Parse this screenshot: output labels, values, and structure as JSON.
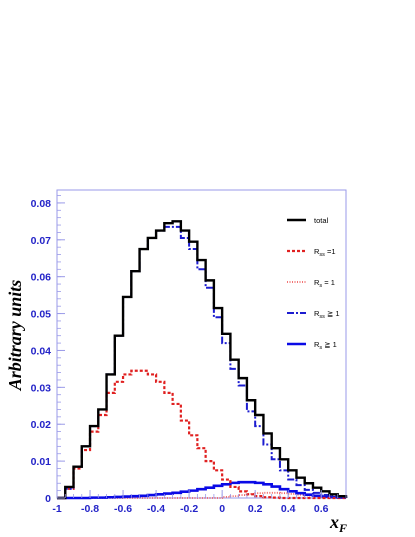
{
  "chart_data": {
    "type": "line",
    "step": true,
    "xlabel": "x_F",
    "ylabel": "Arbitrary units",
    "xlim": [
      -1,
      0.75
    ],
    "ylim": [
      0,
      0.0835
    ],
    "grid": false,
    "legend_position": "top-right",
    "x_ticks": [
      "-1",
      "-0.8",
      "-0.6",
      "-0.4",
      "-0.2",
      "0",
      "0.2",
      "0.4",
      "0.6"
    ],
    "x_tick_values": [
      -1,
      -0.8,
      -0.6,
      -0.4,
      -0.2,
      0,
      0.2,
      0.4,
      0.6
    ],
    "y_ticks": [
      "0",
      "0.01",
      "0.02",
      "0.03",
      "0.04",
      "0.05",
      "0.06",
      "0.07",
      "0.08"
    ],
    "y_tick_values": [
      0,
      0.01,
      0.02,
      0.03,
      0.04,
      0.05,
      0.06,
      0.07,
      0.08
    ],
    "bin_edges": [
      -1.0,
      -0.95,
      -0.9,
      -0.85,
      -0.8,
      -0.75,
      -0.7,
      -0.65,
      -0.6,
      -0.55,
      -0.5,
      -0.45,
      -0.4,
      -0.35,
      -0.3,
      -0.25,
      -0.2,
      -0.15,
      -0.1,
      -0.05,
      0.0,
      0.05,
      0.1,
      0.15,
      0.2,
      0.25,
      0.3,
      0.35,
      0.4,
      0.45,
      0.5,
      0.55,
      0.6,
      0.65,
      0.7,
      0.75
    ],
    "series": [
      {
        "name": "total",
        "color": "#000000",
        "dash": "solid",
        "width": 2.4,
        "values": [
          0.0,
          0.003,
          0.0085,
          0.014,
          0.0195,
          0.024,
          0.0335,
          0.044,
          0.0545,
          0.0615,
          0.0675,
          0.0705,
          0.0725,
          0.0745,
          0.075,
          0.0725,
          0.0695,
          0.0645,
          0.059,
          0.0515,
          0.0445,
          0.0375,
          0.0325,
          0.0265,
          0.0225,
          0.0175,
          0.0135,
          0.0105,
          0.0075,
          0.0055,
          0.004,
          0.0028,
          0.0018,
          0.001,
          0.0005
        ]
      },
      {
        "name": "R_ss = 1",
        "color": "#e02020",
        "dash": "3,2",
        "width": 2.2,
        "values": [
          0.0,
          0.0025,
          0.008,
          0.013,
          0.018,
          0.0225,
          0.0285,
          0.0315,
          0.0335,
          0.0345,
          0.0345,
          0.0335,
          0.0315,
          0.0285,
          0.0255,
          0.021,
          0.017,
          0.0135,
          0.01,
          0.0075,
          0.005,
          0.003,
          0.0018,
          0.001,
          0.0005,
          0.0002,
          0.0001,
          0.0,
          0.0,
          0.0,
          0.0,
          0.0,
          0.0,
          0.0,
          0.0
        ]
      },
      {
        "name": "R_s = 1",
        "color": "#f06060",
        "dash": "1,1.5",
        "width": 1.8,
        "values": [
          0.0,
          0.0,
          0.0,
          0.0,
          0.0,
          0.0,
          0.0,
          0.0,
          0.0,
          0.0,
          0.0,
          0.0,
          0.0,
          0.0,
          0.0,
          0.0,
          0.0,
          0.0,
          0.0,
          0.0,
          0.0003,
          0.0005,
          0.0008,
          0.0011,
          0.0013,
          0.0014,
          0.0014,
          0.0013,
          0.0011,
          0.0009,
          0.0007,
          0.0005,
          0.0003,
          0.0002,
          0.0001
        ]
      },
      {
        "name": "R_ss ≧ 1",
        "color": "#1c1cd0",
        "dash": "7,2,2,2",
        "width": 2.0,
        "values": [
          0.0,
          0.0025,
          0.0085,
          0.014,
          0.0195,
          0.024,
          0.0335,
          0.044,
          0.0545,
          0.0615,
          0.0675,
          0.0705,
          0.0725,
          0.0735,
          0.0735,
          0.0705,
          0.0675,
          0.062,
          0.057,
          0.049,
          0.042,
          0.035,
          0.0305,
          0.0235,
          0.0195,
          0.0145,
          0.0105,
          0.0075,
          0.005,
          0.0035,
          0.0022,
          0.0014,
          0.0008,
          0.0004,
          0.0002
        ]
      },
      {
        "name": "R_s ≧ 1",
        "color": "#0a0ae6",
        "dash": "solid",
        "width": 2.6,
        "values": [
          0.0,
          0.0,
          0.0,
          0.0,
          0.0001,
          0.0001,
          0.0002,
          0.0003,
          0.0004,
          0.0005,
          0.0006,
          0.0008,
          0.001,
          0.0012,
          0.0014,
          0.0017,
          0.002,
          0.0024,
          0.0028,
          0.0033,
          0.0037,
          0.0041,
          0.0043,
          0.0043,
          0.0041,
          0.0037,
          0.0031,
          0.0024,
          0.0018,
          0.0013,
          0.0009,
          0.0006,
          0.0004,
          0.0002,
          0.0001
        ]
      }
    ],
    "legend": [
      {
        "key": "total",
        "label": "total",
        "sub": "",
        "rest": ""
      },
      {
        "key": "rss1",
        "label": "R",
        "sub": "ss",
        "rest": " =1"
      },
      {
        "key": "rs1",
        "label": "R",
        "sub": "s",
        "rest": " = 1"
      },
      {
        "key": "rssge1",
        "label": "R",
        "sub": "ss",
        "rest": " ≧ 1"
      },
      {
        "key": "rsge1",
        "label": "R",
        "sub": "s",
        "rest": " ≧ 1"
      }
    ]
  }
}
